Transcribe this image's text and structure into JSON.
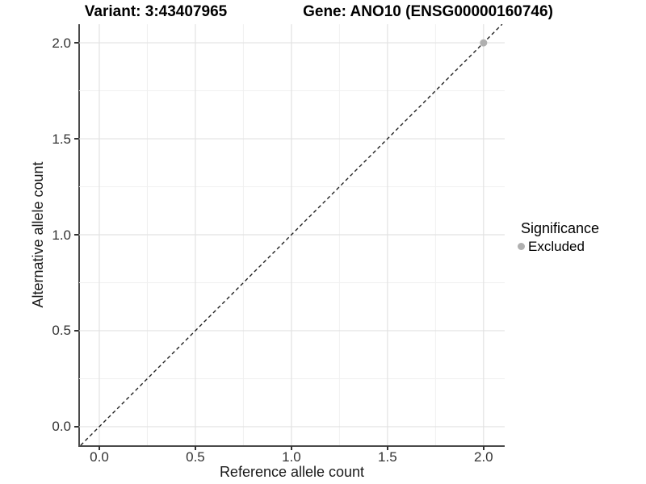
{
  "chart_data": {
    "type": "scatter",
    "title_left": "Variant: 3:43407965",
    "title_right": "Gene: ANO10 (ENSG00000160746)",
    "xlabel": "Reference allele count",
    "ylabel": "Alternative allele count",
    "x_ticks": [
      0,
      0.5,
      1,
      1.5,
      2
    ],
    "y_ticks": [
      0,
      0.5,
      1,
      1.5,
      2
    ],
    "x_tick_labels": [
      "0.0",
      "0.5",
      "1.0",
      "1.5",
      "2.0"
    ],
    "y_tick_labels": [
      "0.0",
      "0.5",
      "1.0",
      "1.5",
      "2.0"
    ],
    "xlim": [
      -0.105,
      2.11
    ],
    "ylim": [
      -0.097,
      2.097
    ],
    "grid": "major+minor",
    "reference_line": {
      "kind": "identity y=x",
      "style": "dashed",
      "color": "#222222"
    },
    "points": [
      {
        "x": 2.0,
        "y": 2.0,
        "significance": "Excluded"
      }
    ],
    "legend": {
      "title": "Significance",
      "position": "right",
      "items": [
        {
          "label": "Excluded",
          "color": "#b0b0b0"
        }
      ]
    }
  },
  "colors": {
    "background": "#ffffff",
    "grid_major": "#e2e2e2",
    "grid_minor": "#f0f0f0",
    "axis_line": "#4a4a4a",
    "tick_mark": "#333333",
    "tick_label": "#333333",
    "point_excluded": "#b0b0b0",
    "dashed_line": "#222222"
  }
}
